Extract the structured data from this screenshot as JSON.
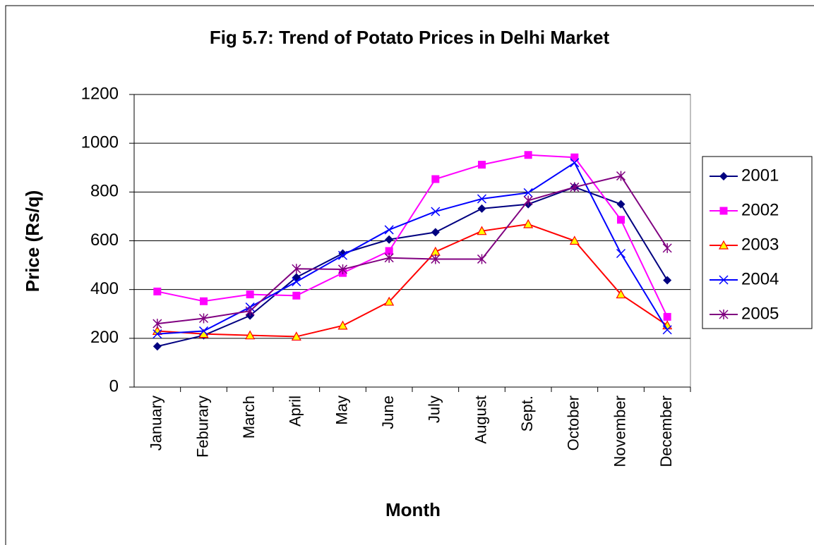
{
  "chart_data": {
    "type": "line",
    "title": "Fig 5.7: Trend of Potato Prices in Delhi Market",
    "x_label": "Month",
    "y_label": "Price (Rs/q)",
    "categories": [
      "January",
      "Feburary",
      "March",
      "April",
      "May",
      "June",
      "July",
      "August",
      "Sept.",
      "October",
      "November",
      "December"
    ],
    "series": [
      {
        "name": "2001",
        "color": "#000080",
        "marker": "diamond",
        "values": [
          167,
          212,
          293,
          450,
          548,
          605,
          635,
          732,
          750,
          820,
          750,
          438
        ]
      },
      {
        "name": "2002",
        "color": "#FF00FF",
        "marker": "square",
        "values": [
          392,
          352,
          380,
          375,
          468,
          558,
          853,
          912,
          952,
          942,
          686,
          288
        ]
      },
      {
        "name": "2003",
        "color": "#FF0000",
        "marker": "triangle",
        "marker_fill": "#FFFF00",
        "values": [
          230,
          218,
          212,
          207,
          252,
          350,
          555,
          640,
          668,
          600,
          380,
          253
        ]
      },
      {
        "name": "2004",
        "color": "#0000FF",
        "marker": "x",
        "values": [
          218,
          230,
          328,
          432,
          540,
          645,
          720,
          772,
          797,
          920,
          548,
          235
        ]
      },
      {
        "name": "2005",
        "color": "#800080",
        "marker": "star",
        "values": [
          260,
          282,
          312,
          485,
          483,
          530,
          525,
          525,
          765,
          820,
          866,
          570
        ]
      }
    ],
    "ylim": [
      0,
      1200
    ],
    "yticks": [
      0,
      200,
      400,
      600,
      800,
      1000,
      1200
    ],
    "grid": true,
    "legend": "right"
  }
}
